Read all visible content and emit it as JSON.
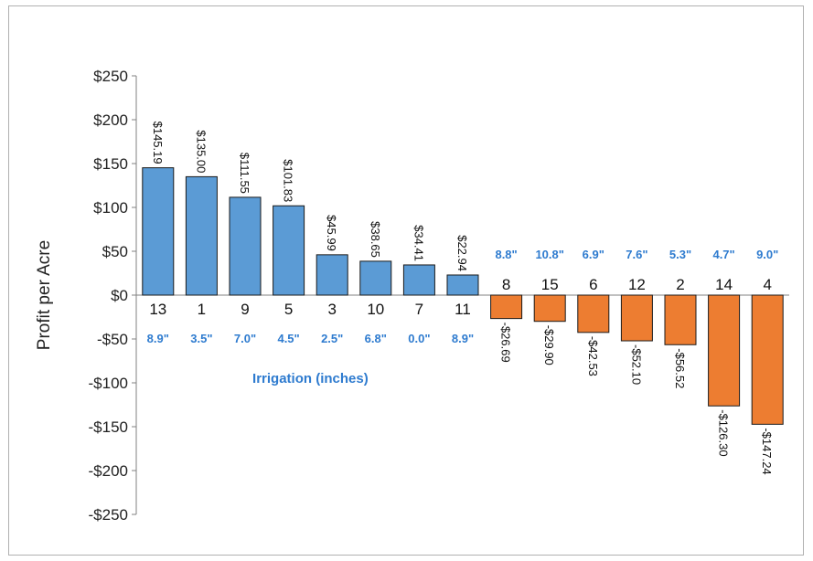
{
  "chart_data": {
    "type": "bar",
    "categories": [
      "13",
      "1",
      "9",
      "5",
      "3",
      "10",
      "7",
      "11",
      "8",
      "15",
      "6",
      "12",
      "2",
      "14",
      "4"
    ],
    "values": [
      145.19,
      135.0,
      111.55,
      101.83,
      45.99,
      38.65,
      34.41,
      22.94,
      -26.69,
      -29.9,
      -42.53,
      -52.1,
      -56.52,
      -126.3,
      -147.24
    ],
    "value_labels": [
      "$145.19",
      "$135.00",
      "$111.55",
      "$101.83",
      "$45.99",
      "$38.65",
      "$34.41",
      "$22.94",
      "-$26.69",
      "-$29.90",
      "-$42.53",
      "-$52.10",
      "-$56.52",
      "-$126.30",
      "-$147.24"
    ],
    "irrigation": [
      "8.9\"",
      "3.5\"",
      "7.0\"",
      "4.5\"",
      "2.5\"",
      "6.8\"",
      "0.0\"",
      "8.9\"",
      "8.8\"",
      "10.8\"",
      "6.9\"",
      "7.6\"",
      "5.3\"",
      "4.7\"",
      "9.0\""
    ],
    "title": "",
    "xlabel": "Irrigation (inches)",
    "ylabel": "Profit per Acre",
    "ylim": [
      -250,
      250
    ],
    "yticks": [
      250,
      200,
      150,
      100,
      50,
      0,
      -50,
      -100,
      -150,
      -200,
      -250
    ],
    "ytick_labels": [
      "$250",
      "$200",
      "$150",
      "$100",
      "$50",
      "$0",
      "-$50",
      "-$100",
      "-$150",
      "-$200",
      "-$250"
    ],
    "grid": false,
    "legend": "none",
    "colors": {
      "positive": "#5b9bd5",
      "negative": "#ed7d31",
      "bar_edge": "#1a1a1a",
      "irrigation_text": "#2e7bcf",
      "axis": "#808080"
    }
  }
}
